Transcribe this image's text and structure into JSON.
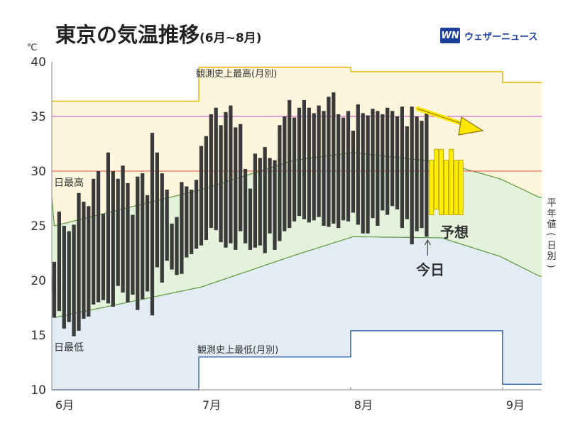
{
  "header": {
    "title": "東京の気温推移",
    "subtitle": "(6月~8月)"
  },
  "brand": {
    "mark": "WN",
    "name": "ウェザーニュース"
  },
  "chart_data": {
    "type": "bar",
    "unit": "℃",
    "ylim": [
      10,
      40
    ],
    "y_ticks": [
      "10",
      "15",
      "20",
      "25",
      "30",
      "35",
      "40"
    ],
    "months": [
      "6月",
      "7月",
      "8月",
      "9月"
    ],
    "days_total": 100,
    "annotations": {
      "daily_high": "日最高",
      "daily_low": "日最低",
      "record_high": "観測史上最高(月別)",
      "record_low": "観測史上最低(月別)",
      "normal": "平年値(日別)",
      "forecast": "予想",
      "today": "今日"
    },
    "reference_lines": [
      {
        "value": 35,
        "color": "#c847c8"
      },
      {
        "value": 30,
        "color": "#e04a3a"
      }
    ],
    "record_high_by_month": [
      {
        "month": "6月",
        "value": 36.4
      },
      {
        "month": "7月",
        "value": 39.5
      },
      {
        "month": "8月",
        "value": 39.1
      },
      {
        "month": "9月",
        "value": 38.1
      }
    ],
    "record_low_by_month": [
      {
        "month": "6月",
        "value": 10.0
      },
      {
        "month": "7月",
        "value": 13.0
      },
      {
        "month": "8月",
        "value": 15.4
      },
      {
        "month": "9月",
        "value": 10.5
      }
    ],
    "normal_high_keys": [
      [
        1,
        25.0
      ],
      [
        31,
        28.3
      ],
      [
        50,
        31.0
      ],
      [
        62,
        31.7
      ],
      [
        80,
        30.8
      ],
      [
        92,
        29.3
      ],
      [
        100,
        27.6
      ]
    ],
    "normal_low_keys": [
      [
        1,
        16.6
      ],
      [
        31,
        19.4
      ],
      [
        50,
        22.3
      ],
      [
        62,
        24.0
      ],
      [
        80,
        23.9
      ],
      [
        92,
        22.2
      ],
      [
        100,
        20.4
      ]
    ],
    "observed": [
      {
        "high": 21.7,
        "low": 16.6
      },
      {
        "high": 26.3,
        "low": 17.2
      },
      {
        "high": 25.0,
        "low": 15.6
      },
      {
        "high": 24.5,
        "low": 16.2
      },
      {
        "high": 25.1,
        "low": 14.9
      },
      {
        "high": 28.0,
        "low": 15.4
      },
      {
        "high": 27.2,
        "low": 16.5
      },
      {
        "high": 26.8,
        "low": 16.7
      },
      {
        "high": 29.3,
        "low": 17.8
      },
      {
        "high": 30.0,
        "low": 18.0
      },
      {
        "high": 26.1,
        "low": 18.2
      },
      {
        "high": 31.7,
        "low": 17.9
      },
      {
        "high": 30.0,
        "low": 17.6
      },
      {
        "high": 29.3,
        "low": 19.5
      },
      {
        "high": 30.5,
        "low": 18.9
      },
      {
        "high": 28.9,
        "low": 18.0
      },
      {
        "high": 26.0,
        "low": 18.7
      },
      {
        "high": 29.5,
        "low": 17.3
      },
      {
        "high": 29.8,
        "low": 18.3
      },
      {
        "high": 27.8,
        "low": 19.0
      },
      {
        "high": 33.5,
        "low": 16.8
      },
      {
        "high": 31.7,
        "low": 21.2
      },
      {
        "high": 29.8,
        "low": 19.8
      },
      {
        "high": 28.3,
        "low": 21.8
      },
      {
        "high": 25.2,
        "low": 21.0
      },
      {
        "high": 25.8,
        "low": 20.5
      },
      {
        "high": 29.0,
        "low": 20.6
      },
      {
        "high": 28.6,
        "low": 22.1
      },
      {
        "high": 28.3,
        "low": 22.4
      },
      {
        "high": 29.2,
        "low": 22.9
      },
      {
        "high": 32.3,
        "low": 23.2
      },
      {
        "high": 33.2,
        "low": 23.7
      },
      {
        "high": 35.2,
        "low": 24.8
      },
      {
        "high": 35.8,
        "low": 24.6
      },
      {
        "high": 34.2,
        "low": 23.5
      },
      {
        "high": 35.4,
        "low": 23.0
      },
      {
        "high": 36.0,
        "low": 23.4
      },
      {
        "high": 34.0,
        "low": 22.8
      },
      {
        "high": 34.3,
        "low": 24.5
      },
      {
        "high": 30.2,
        "low": 23.4
      },
      {
        "high": 28.4,
        "low": 22.8
      },
      {
        "high": 31.6,
        "low": 23.0
      },
      {
        "high": 31.2,
        "low": 23.2
      },
      {
        "high": 32.2,
        "low": 22.5
      },
      {
        "high": 31.2,
        "low": 24.3
      },
      {
        "high": 31.0,
        "low": 22.8
      },
      {
        "high": 34.2,
        "low": 23.6
      },
      {
        "high": 35.0,
        "low": 24.5
      },
      {
        "high": 36.5,
        "low": 24.8
      },
      {
        "high": 34.9,
        "low": 25.4
      },
      {
        "high": 35.8,
        "low": 25.9
      },
      {
        "high": 36.5,
        "low": 25.6
      },
      {
        "high": 35.8,
        "low": 25.3
      },
      {
        "high": 35.3,
        "low": 25.5
      },
      {
        "high": 36.0,
        "low": 25.8
      },
      {
        "high": 35.5,
        "low": 25.0
      },
      {
        "high": 36.8,
        "low": 24.9
      },
      {
        "high": 37.2,
        "low": 25.2
      },
      {
        "high": 35.2,
        "low": 24.8
      },
      {
        "high": 34.9,
        "low": 25.5
      },
      {
        "high": 35.5,
        "low": 25.4
      },
      {
        "high": 33.7,
        "low": 26.2
      },
      {
        "high": 36.1,
        "low": 25.1
      },
      {
        "high": 35.3,
        "low": 24.3
      },
      {
        "high": 35.1,
        "low": 24.3
      },
      {
        "high": 35.7,
        "low": 25.7
      },
      {
        "high": 35.5,
        "low": 25.0
      },
      {
        "high": 35.2,
        "low": 26.4
      },
      {
        "high": 35.8,
        "low": 26.0
      },
      {
        "high": 35.5,
        "low": 26.8
      },
      {
        "high": 35.0,
        "low": 26.5
      },
      {
        "high": 35.9,
        "low": 24.8
      },
      {
        "high": 34.1,
        "low": 25.6
      },
      {
        "high": 35.9,
        "low": 23.3
      },
      {
        "high": 35.0,
        "low": 24.5
      },
      {
        "high": 34.6,
        "low": 24.8
      },
      {
        "high": 35.3,
        "low": 24.0
      }
    ],
    "forecast": [
      {
        "high": 31.0,
        "low": 26.0
      },
      {
        "high": 32.0,
        "low": 26.5
      },
      {
        "high": 32.0,
        "low": 26.0
      },
      {
        "high": 31.0,
        "low": 26.0
      },
      {
        "high": 32.0,
        "low": 26.0
      },
      {
        "high": 31.0,
        "low": 26.0
      },
      {
        "high": 31.0,
        "low": 26.0
      }
    ]
  }
}
